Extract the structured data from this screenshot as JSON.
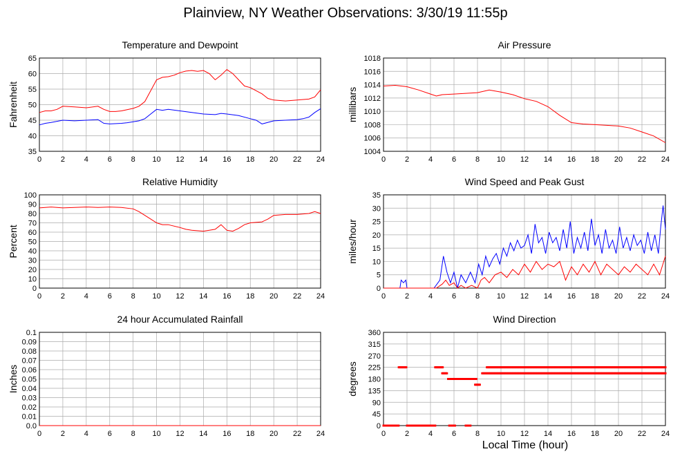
{
  "title": "Plainview, NY Weather Observations: 3/30/19 11:55p",
  "x_axis_label": "Local Time (hour)",
  "colors": {
    "red": "#ff0000",
    "blue": "#0000ff",
    "grid": "#aaaaaa",
    "axis": "#000000"
  },
  "chart_data": [
    {
      "type": "line",
      "title": "Temperature and Dewpoint",
      "ylabel": "Fahrenheit",
      "xlim": [
        0,
        24
      ],
      "ylim": [
        35,
        65
      ],
      "xticks": [
        0,
        2,
        4,
        6,
        8,
        10,
        12,
        14,
        16,
        18,
        20,
        22,
        24
      ],
      "yticks": [
        35,
        40,
        45,
        50,
        55,
        60,
        65
      ],
      "grid": true,
      "series": [
        {
          "color": "#ff0000",
          "x": [
            0,
            0.5,
            1,
            1.5,
            2,
            3,
            4,
            5,
            5.5,
            6,
            6.5,
            7,
            8,
            8.5,
            9,
            9.5,
            10,
            10.5,
            11,
            11.5,
            12,
            12.5,
            13,
            13.5,
            14,
            14.5,
            15,
            15.5,
            16,
            16.5,
            17,
            17.5,
            18,
            18.5,
            19,
            19.5,
            20,
            21,
            22,
            23,
            23.5,
            24
          ],
          "y": [
            47.5,
            48,
            48,
            48.5,
            49.5,
            49.3,
            49,
            49.5,
            48.5,
            47.8,
            47.8,
            48,
            48.8,
            49.5,
            51,
            54.5,
            58,
            58.8,
            59,
            59.5,
            60.3,
            60.8,
            61,
            60.7,
            61,
            60,
            58,
            59.5,
            61.3,
            60,
            58,
            56,
            55.5,
            54.5,
            53.5,
            52,
            51.5,
            51.2,
            51.5,
            51.8,
            52.5,
            54.8
          ]
        },
        {
          "color": "#0000ff",
          "x": [
            0,
            0.5,
            1,
            2,
            3,
            4,
            5,
            5.5,
            6,
            7,
            7.5,
            8,
            8.5,
            9,
            9.5,
            10,
            10.5,
            11,
            12,
            13,
            14,
            15,
            15.5,
            16,
            17,
            18,
            18.5,
            19,
            20,
            21,
            22,
            22.5,
            23,
            23.5,
            24
          ],
          "y": [
            43.5,
            44,
            44.3,
            45,
            44.8,
            45,
            45.2,
            44,
            43.8,
            44,
            44.2,
            44.5,
            44.8,
            45.5,
            47,
            48.5,
            48.2,
            48.5,
            48,
            47.5,
            47,
            46.8,
            47.2,
            47,
            46.5,
            45.5,
            45,
            43.8,
            44.8,
            45,
            45.2,
            45.5,
            46,
            47.5,
            48.7
          ]
        }
      ]
    },
    {
      "type": "line",
      "title": "Air Pressure",
      "ylabel": "millibars",
      "xlim": [
        0,
        24
      ],
      "ylim": [
        1004,
        1018
      ],
      "xticks": [
        0,
        2,
        4,
        6,
        8,
        10,
        12,
        14,
        16,
        18,
        20,
        22,
        24
      ],
      "yticks": [
        1004,
        1006,
        1008,
        1010,
        1012,
        1014,
        1016,
        1018
      ],
      "grid": true,
      "series": [
        {
          "color": "#ff0000",
          "x": [
            0,
            1,
            2,
            3,
            4,
            4.5,
            5,
            6,
            7,
            8,
            9,
            10,
            11,
            12,
            13,
            14,
            15,
            16,
            17,
            18,
            19,
            20,
            21,
            22,
            23,
            24
          ],
          "y": [
            1013.8,
            1013.9,
            1013.7,
            1013.2,
            1012.6,
            1012.3,
            1012.5,
            1012.6,
            1012.7,
            1012.8,
            1013.2,
            1012.9,
            1012.5,
            1011.9,
            1011.5,
            1010.7,
            1009.4,
            1008.3,
            1008.1,
            1008.0,
            1007.9,
            1007.8,
            1007.5,
            1006.9,
            1006.3,
            1005.3
          ]
        }
      ]
    },
    {
      "type": "line",
      "title": "Relative Humidity",
      "ylabel": "Percent",
      "xlim": [
        0,
        24
      ],
      "ylim": [
        0,
        100
      ],
      "xticks": [
        0,
        2,
        4,
        6,
        8,
        10,
        12,
        14,
        16,
        18,
        20,
        22,
        24
      ],
      "yticks": [
        0,
        10,
        20,
        30,
        40,
        50,
        60,
        70,
        80,
        90,
        100
      ],
      "grid": true,
      "series": [
        {
          "color": "#ff0000",
          "x": [
            0,
            1,
            2,
            3,
            4,
            5,
            6,
            7,
            8,
            8.5,
            9,
            9.5,
            10,
            10.5,
            11,
            12,
            12.5,
            13,
            14,
            15,
            15.5,
            16,
            16.5,
            17,
            17.5,
            18,
            19,
            19.5,
            20,
            21,
            22,
            23,
            23.5,
            24
          ],
          "y": [
            86,
            87,
            86,
            86.5,
            87,
            86.5,
            87,
            86.5,
            85,
            82,
            78,
            74,
            70,
            68,
            68,
            65,
            63,
            62,
            61,
            63,
            68,
            62,
            61,
            64,
            68,
            70,
            71,
            74,
            78,
            79,
            79,
            80,
            82,
            80
          ]
        }
      ]
    },
    {
      "type": "line",
      "title": "Wind Speed and Peak Gust",
      "ylabel": "miles/hour",
      "xlim": [
        0,
        24
      ],
      "ylim": [
        0,
        35
      ],
      "xticks": [
        0,
        2,
        4,
        6,
        8,
        10,
        12,
        14,
        16,
        18,
        20,
        22,
        24
      ],
      "yticks": [
        0,
        5,
        10,
        15,
        20,
        25,
        30,
        35
      ],
      "grid": true,
      "series": [
        {
          "color": "#0000ff",
          "x": [
            0,
            1.4,
            1.5,
            1.7,
            1.9,
            2,
            4.3,
            4.8,
            5.1,
            5.4,
            5.7,
            6,
            6.3,
            6.6,
            7,
            7.4,
            7.8,
            8.1,
            8.4,
            8.7,
            9,
            9.3,
            9.6,
            9.9,
            10.2,
            10.5,
            10.8,
            11.1,
            11.4,
            11.7,
            12,
            12.3,
            12.6,
            12.9,
            13.2,
            13.5,
            13.8,
            14.1,
            14.4,
            14.7,
            15,
            15.3,
            15.6,
            15.9,
            16.2,
            16.5,
            16.8,
            17.1,
            17.4,
            17.7,
            18,
            18.3,
            18.6,
            18.9,
            19.2,
            19.5,
            19.8,
            20.1,
            20.4,
            20.7,
            21,
            21.3,
            21.6,
            21.9,
            22.2,
            22.5,
            22.8,
            23.1,
            23.4,
            23.6,
            23.8,
            24
          ],
          "y": [
            0,
            0,
            3,
            2,
            3,
            0,
            0,
            3,
            12,
            6,
            2,
            6,
            0,
            5,
            2,
            6,
            2,
            9,
            5,
            12,
            8,
            11,
            13,
            9,
            15,
            12,
            17,
            14,
            18,
            15,
            16,
            20,
            13,
            24,
            17,
            19,
            13,
            21,
            17,
            19,
            14,
            22,
            15,
            25,
            13,
            19,
            15,
            21,
            14,
            26,
            16,
            20,
            13,
            22,
            15,
            18,
            13,
            23,
            15,
            19,
            14,
            20,
            16,
            18,
            13,
            21,
            14,
            20,
            13,
            23,
            31,
            22
          ]
        },
        {
          "color": "#ff0000",
          "x": [
            0,
            4.5,
            5,
            5.3,
            5.6,
            6,
            6.3,
            6.6,
            7,
            7.5,
            8,
            8.3,
            8.6,
            9,
            9.5,
            10,
            10.5,
            11,
            11.5,
            12,
            12.5,
            13,
            13.5,
            14,
            14.5,
            15,
            15.5,
            16,
            16.5,
            17,
            17.5,
            18,
            18.5,
            19,
            19.5,
            20,
            20.5,
            21,
            21.5,
            22,
            22.5,
            23,
            23.5,
            24
          ],
          "y": [
            0,
            0,
            1.5,
            3,
            1,
            2,
            0,
            1,
            0,
            1,
            0,
            3,
            4,
            2,
            5,
            6,
            4,
            7,
            5,
            9,
            6,
            10,
            7,
            9,
            8,
            10,
            3,
            8,
            5,
            9,
            6,
            10,
            5,
            9,
            7,
            5,
            8,
            6,
            9,
            7,
            5,
            9,
            5,
            12
          ]
        }
      ]
    },
    {
      "type": "line",
      "title": "24 hour Accumulated Rainfall",
      "ylabel": "Inches",
      "xlim": [
        0,
        24
      ],
      "ylim": [
        0,
        0.1
      ],
      "xticks": [
        0,
        2,
        4,
        6,
        8,
        10,
        12,
        14,
        16,
        18,
        20,
        22,
        24
      ],
      "yticks": [
        "0.0",
        "0.01",
        "0.02",
        "0.03",
        "0.04",
        "0.05",
        "0.06",
        "0.07",
        "0.08",
        "0.09",
        "0.1"
      ],
      "grid": true,
      "series": [
        {
          "color": "#ff0000",
          "x": [
            0,
            24
          ],
          "y": [
            0,
            0
          ]
        }
      ]
    },
    {
      "type": "scatter",
      "title": "Wind Direction",
      "ylabel": "degrees",
      "xlim": [
        0,
        24
      ],
      "ylim": [
        0,
        360
      ],
      "xticks": [
        0,
        2,
        4,
        6,
        8,
        10,
        12,
        14,
        16,
        18,
        20,
        22,
        24
      ],
      "yticks": [
        0,
        45,
        90,
        135,
        180,
        225,
        270,
        315,
        360
      ],
      "grid": true,
      "segments": [
        {
          "x": [
            0,
            1.3
          ],
          "y": 0
        },
        {
          "x": [
            1.3,
            2.0
          ],
          "y": 225
        },
        {
          "x": [
            2.0,
            4.4
          ],
          "y": 0
        },
        {
          "x": [
            4.4,
            5.1
          ],
          "y": 225
        },
        {
          "x": [
            5.0,
            5.4
          ],
          "y": 202
        },
        {
          "x": [
            5.5,
            7.9
          ],
          "y": 180
        },
        {
          "x": [
            5.6,
            6.1
          ],
          "y": 0
        },
        {
          "x": [
            7.0,
            7.4
          ],
          "y": 0
        },
        {
          "x": [
            7.8,
            8.2
          ],
          "y": 158
        },
        {
          "x": [
            8.4,
            24
          ],
          "y": 202
        },
        {
          "x": [
            8.8,
            24
          ],
          "y": 225
        }
      ]
    }
  ]
}
